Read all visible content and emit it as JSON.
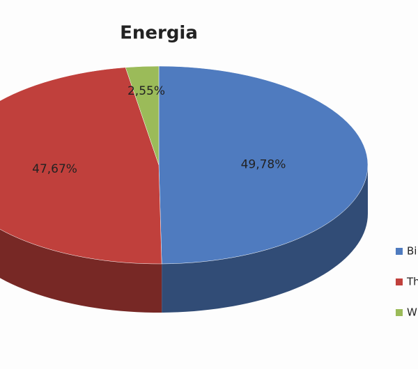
{
  "chart_data": {
    "type": "pie",
    "title": "Energia",
    "series": [
      {
        "name": "Bi",
        "color": "#4f7bbf",
        "value": 49.78,
        "value_label": "49,78%"
      },
      {
        "name": "Th",
        "color": "#c0403c",
        "value": 47.67,
        "value_label": "47,67%"
      },
      {
        "name": "W",
        "color": "#9bbb59",
        "value": 2.55,
        "value_label": "2,55%"
      }
    ],
    "legend": "right"
  }
}
